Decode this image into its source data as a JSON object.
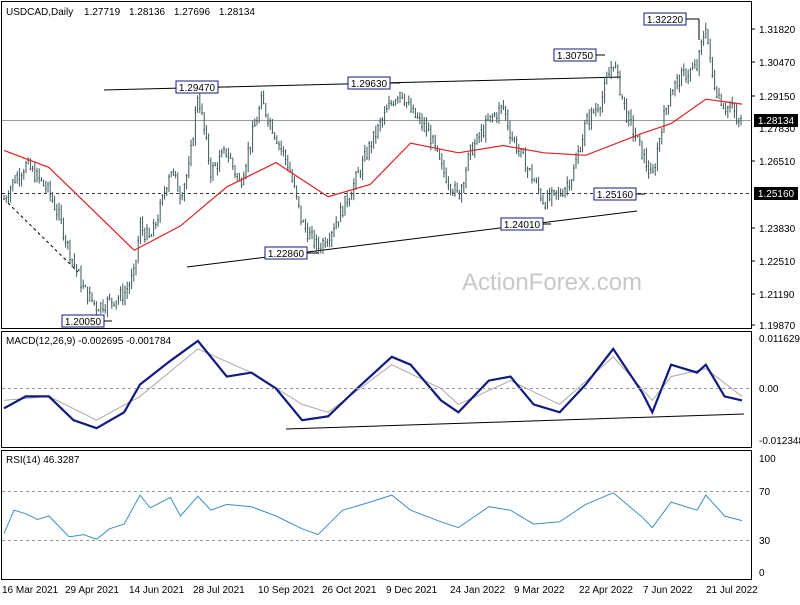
{
  "chart_data": {
    "type": "line",
    "header": {
      "symbol": "USDCAD,Daily",
      "open": "1.27719",
      "high": "1.28136",
      "low": "1.27696",
      "close": "1.28134"
    },
    "price_axis": {
      "ticks": [
        "1.31820",
        "1.30470",
        "1.29150",
        "1.27830",
        "1.26510",
        "1.25160",
        "1.23830",
        "1.22510",
        "1.21190",
        "1.19870"
      ],
      "range": [
        1.1965,
        1.3295
      ]
    },
    "current_price": "1.28134",
    "support_level": "1.25160",
    "x_labels": [
      "16 Mar 2021",
      "29 Apr 2021",
      "14 Jun 2021",
      "28 Jul 2021",
      "10 Sep 2021",
      "26 Oct 2021",
      "9 Dec 2021",
      "24 Jan 2022",
      "9 Mar 2022",
      "22 Apr 2022",
      "7 Jun 2022",
      "21 Jul 2022"
    ],
    "annotations": [
      "1.20050",
      "1.29470",
      "1.22860",
      "1.29630",
      "1.30750",
      "1.24010",
      "1.25160",
      "1.32220"
    ],
    "price_series": [
      {
        "date": "2021-03-16",
        "value": 1.249
      },
      {
        "date": "2021-03-23",
        "value": 1.257
      },
      {
        "date": "2021-03-31",
        "value": 1.263
      },
      {
        "date": "2021-04-08",
        "value": 1.258
      },
      {
        "date": "2021-04-16",
        "value": 1.252
      },
      {
        "date": "2021-04-23",
        "value": 1.242
      },
      {
        "date": "2021-04-30",
        "value": 1.228
      },
      {
        "date": "2021-05-10",
        "value": 1.212
      },
      {
        "date": "2021-05-19",
        "value": 1.205
      },
      {
        "date": "2021-05-28",
        "value": 1.207
      },
      {
        "date": "2021-06-07",
        "value": 1.21
      },
      {
        "date": "2021-06-14",
        "value": 1.218
      },
      {
        "date": "2021-06-18",
        "value": 1.238
      },
      {
        "date": "2021-06-25",
        "value": 1.232
      },
      {
        "date": "2021-07-02",
        "value": 1.245
      },
      {
        "date": "2021-07-09",
        "value": 1.262
      },
      {
        "date": "2021-07-16",
        "value": 1.251
      },
      {
        "date": "2021-07-22",
        "value": 1.262
      },
      {
        "date": "2021-07-28",
        "value": 1.293
      },
      {
        "date": "2021-08-06",
        "value": 1.26
      },
      {
        "date": "2021-08-17",
        "value": 1.269
      },
      {
        "date": "2021-08-26",
        "value": 1.255
      },
      {
        "date": "2021-09-03",
        "value": 1.274
      },
      {
        "date": "2021-09-10",
        "value": 1.289
      },
      {
        "date": "2021-09-20",
        "value": 1.275
      },
      {
        "date": "2021-09-29",
        "value": 1.262
      },
      {
        "date": "2021-10-08",
        "value": 1.239
      },
      {
        "date": "2021-10-19",
        "value": 1.229
      },
      {
        "date": "2021-10-26",
        "value": 1.234
      },
      {
        "date": "2021-11-05",
        "value": 1.245
      },
      {
        "date": "2021-11-15",
        "value": 1.258
      },
      {
        "date": "2021-11-24",
        "value": 1.271
      },
      {
        "date": "2021-12-03",
        "value": 1.282
      },
      {
        "date": "2021-12-09",
        "value": 1.289
      },
      {
        "date": "2021-12-15",
        "value": 1.294
      },
      {
        "date": "2021-12-22",
        "value": 1.285
      },
      {
        "date": "2022-01-04",
        "value": 1.276
      },
      {
        "date": "2022-01-12",
        "value": 1.262
      },
      {
        "date": "2022-01-24",
        "value": 1.25
      },
      {
        "date": "2022-02-01",
        "value": 1.268
      },
      {
        "date": "2022-02-14",
        "value": 1.281
      },
      {
        "date": "2022-02-24",
        "value": 1.287
      },
      {
        "date": "2022-03-01",
        "value": 1.276
      },
      {
        "date": "2022-03-09",
        "value": 1.266
      },
      {
        "date": "2022-03-17",
        "value": 1.257
      },
      {
        "date": "2022-03-24",
        "value": 1.248
      },
      {
        "date": "2022-04-04",
        "value": 1.251
      },
      {
        "date": "2022-04-13",
        "value": 1.259
      },
      {
        "date": "2022-04-22",
        "value": 1.28
      },
      {
        "date": "2022-05-03",
        "value": 1.29
      },
      {
        "date": "2022-05-11",
        "value": 1.306
      },
      {
        "date": "2022-05-20",
        "value": 1.284
      },
      {
        "date": "2022-05-31",
        "value": 1.268
      },
      {
        "date": "2022-06-07",
        "value": 1.257
      },
      {
        "date": "2022-06-13",
        "value": 1.278
      },
      {
        "date": "2022-06-20",
        "value": 1.294
      },
      {
        "date": "2022-06-29",
        "value": 1.3
      },
      {
        "date": "2022-07-08",
        "value": 1.303
      },
      {
        "date": "2022-07-14",
        "value": 1.321
      },
      {
        "date": "2022-07-18",
        "value": 1.3
      },
      {
        "date": "2022-07-22",
        "value": 1.293
      },
      {
        "date": "2022-07-27",
        "value": 1.287
      },
      {
        "date": "2022-08-02",
        "value": 1.286
      },
      {
        "date": "2022-08-05",
        "value": 1.279
      },
      {
        "date": "2022-08-08",
        "value": 1.281
      }
    ],
    "moving_average": [
      {
        "date": "2021-03-16",
        "value": 1.269
      },
      {
        "date": "2021-04-16",
        "value": 1.262
      },
      {
        "date": "2021-05-19",
        "value": 1.243
      },
      {
        "date": "2021-06-14",
        "value": 1.228
      },
      {
        "date": "2021-07-16",
        "value": 1.238
      },
      {
        "date": "2021-08-17",
        "value": 1.254
      },
      {
        "date": "2021-09-20",
        "value": 1.264
      },
      {
        "date": "2021-10-26",
        "value": 1.25
      },
      {
        "date": "2021-11-24",
        "value": 1.255
      },
      {
        "date": "2021-12-22",
        "value": 1.272
      },
      {
        "date": "2022-01-24",
        "value": 1.268
      },
      {
        "date": "2022-02-24",
        "value": 1.271
      },
      {
        "date": "2022-03-24",
        "value": 1.268
      },
      {
        "date": "2022-04-22",
        "value": 1.267
      },
      {
        "date": "2022-05-31",
        "value": 1.276
      },
      {
        "date": "2022-06-20",
        "value": 1.28
      },
      {
        "date": "2022-07-14",
        "value": 1.29
      },
      {
        "date": "2022-08-08",
        "value": 1.288
      }
    ],
    "macd": {
      "title": "MACD(12,26,9) -0.002695 -0.001784",
      "ticks": [
        "0.011629",
        "0.00",
        "-0.012348"
      ],
      "range": [
        -0.0145,
        0.014
      ],
      "line": [
        {
          "date": "2021-03-16",
          "value": -0.005
        },
        {
          "date": "2021-03-31",
          "value": -0.002
        },
        {
          "date": "2021-04-16",
          "value": -0.002
        },
        {
          "date": "2021-05-03",
          "value": -0.008
        },
        {
          "date": "2021-05-19",
          "value": -0.01
        },
        {
          "date": "2021-06-07",
          "value": -0.006
        },
        {
          "date": "2021-06-18",
          "value": 0.001
        },
        {
          "date": "2021-07-09",
          "value": 0.007
        },
        {
          "date": "2021-07-28",
          "value": 0.012
        },
        {
          "date": "2021-08-17",
          "value": 0.003
        },
        {
          "date": "2021-09-03",
          "value": 0.004
        },
        {
          "date": "2021-09-20",
          "value": 0.0
        },
        {
          "date": "2021-10-08",
          "value": -0.008
        },
        {
          "date": "2021-10-26",
          "value": -0.007
        },
        {
          "date": "2021-11-15",
          "value": 0.0
        },
        {
          "date": "2021-12-09",
          "value": 0.008
        },
        {
          "date": "2021-12-22",
          "value": 0.006
        },
        {
          "date": "2022-01-12",
          "value": -0.003
        },
        {
          "date": "2022-01-24",
          "value": -0.006
        },
        {
          "date": "2022-02-14",
          "value": 0.002
        },
        {
          "date": "2022-03-01",
          "value": 0.003
        },
        {
          "date": "2022-03-17",
          "value": -0.004
        },
        {
          "date": "2022-04-04",
          "value": -0.006
        },
        {
          "date": "2022-04-22",
          "value": 0.001
        },
        {
          "date": "2022-05-11",
          "value": 0.01
        },
        {
          "date": "2022-05-31",
          "value": -0.001
        },
        {
          "date": "2022-06-07",
          "value": -0.006
        },
        {
          "date": "2022-06-20",
          "value": 0.006
        },
        {
          "date": "2022-07-08",
          "value": 0.004
        },
        {
          "date": "2022-07-14",
          "value": 0.006
        },
        {
          "date": "2022-07-27",
          "value": -0.002
        },
        {
          "date": "2022-08-08",
          "value": -0.003
        }
      ],
      "signal": [
        {
          "date": "2021-03-16",
          "value": -0.003
        },
        {
          "date": "2021-04-16",
          "value": -0.002
        },
        {
          "date": "2021-05-19",
          "value": -0.008
        },
        {
          "date": "2021-06-18",
          "value": -0.002
        },
        {
          "date": "2021-07-28",
          "value": 0.01
        },
        {
          "date": "2021-09-03",
          "value": 0.004
        },
        {
          "date": "2021-10-08",
          "value": -0.004
        },
        {
          "date": "2021-10-26",
          "value": -0.006
        },
        {
          "date": "2021-12-09",
          "value": 0.006
        },
        {
          "date": "2022-01-12",
          "value": 0.0
        },
        {
          "date": "2022-01-24",
          "value": -0.004
        },
        {
          "date": "2022-03-01",
          "value": 0.002
        },
        {
          "date": "2022-04-04",
          "value": -0.004
        },
        {
          "date": "2022-05-11",
          "value": 0.008
        },
        {
          "date": "2022-06-07",
          "value": -0.003
        },
        {
          "date": "2022-06-20",
          "value": 0.003
        },
        {
          "date": "2022-07-14",
          "value": 0.005
        },
        {
          "date": "2022-08-08",
          "value": -0.002
        }
      ]
    },
    "rsi": {
      "title": "RSI(14) 46.3287",
      "ticks": [
        "100",
        "70",
        "30",
        "0"
      ],
      "range": [
        0,
        100
      ],
      "line": [
        {
          "date": "2021-03-16",
          "value": 35
        },
        {
          "date": "2021-03-23",
          "value": 55
        },
        {
          "date": "2021-03-31",
          "value": 52
        },
        {
          "date": "2021-04-08",
          "value": 47
        },
        {
          "date": "2021-04-16",
          "value": 50
        },
        {
          "date": "2021-04-30",
          "value": 32
        },
        {
          "date": "2021-05-10",
          "value": 34
        },
        {
          "date": "2021-05-19",
          "value": 30
        },
        {
          "date": "2021-05-28",
          "value": 39
        },
        {
          "date": "2021-06-07",
          "value": 43
        },
        {
          "date": "2021-06-18",
          "value": 68
        },
        {
          "date": "2021-06-25",
          "value": 57
        },
        {
          "date": "2021-07-09",
          "value": 66
        },
        {
          "date": "2021-07-16",
          "value": 50
        },
        {
          "date": "2021-07-28",
          "value": 67
        },
        {
          "date": "2021-08-06",
          "value": 55
        },
        {
          "date": "2021-08-17",
          "value": 60
        },
        {
          "date": "2021-09-03",
          "value": 58
        },
        {
          "date": "2021-09-20",
          "value": 50
        },
        {
          "date": "2021-10-08",
          "value": 39
        },
        {
          "date": "2021-10-19",
          "value": 34
        },
        {
          "date": "2021-11-05",
          "value": 55
        },
        {
          "date": "2021-11-24",
          "value": 62
        },
        {
          "date": "2021-12-09",
          "value": 68
        },
        {
          "date": "2021-12-22",
          "value": 55
        },
        {
          "date": "2022-01-12",
          "value": 45
        },
        {
          "date": "2022-01-24",
          "value": 40
        },
        {
          "date": "2022-02-14",
          "value": 58
        },
        {
          "date": "2022-03-01",
          "value": 55
        },
        {
          "date": "2022-03-17",
          "value": 43
        },
        {
          "date": "2022-04-04",
          "value": 45
        },
        {
          "date": "2022-04-22",
          "value": 60
        },
        {
          "date": "2022-05-11",
          "value": 70
        },
        {
          "date": "2022-05-31",
          "value": 49
        },
        {
          "date": "2022-06-07",
          "value": 40
        },
        {
          "date": "2022-06-20",
          "value": 62
        },
        {
          "date": "2022-07-08",
          "value": 55
        },
        {
          "date": "2022-07-14",
          "value": 68
        },
        {
          "date": "2022-07-27",
          "value": 50
        },
        {
          "date": "2022-08-08",
          "value": 46
        }
      ]
    },
    "watermark": "ActionForex.com",
    "colors": {
      "candles": "#3d5a5a",
      "ma": "#dd2222",
      "macd": "#101a80",
      "signal": "#a9a9a9",
      "rsi": "#3a8fc9",
      "line": "#000000",
      "grid": "#999999",
      "label_border": "#101a80"
    }
  }
}
